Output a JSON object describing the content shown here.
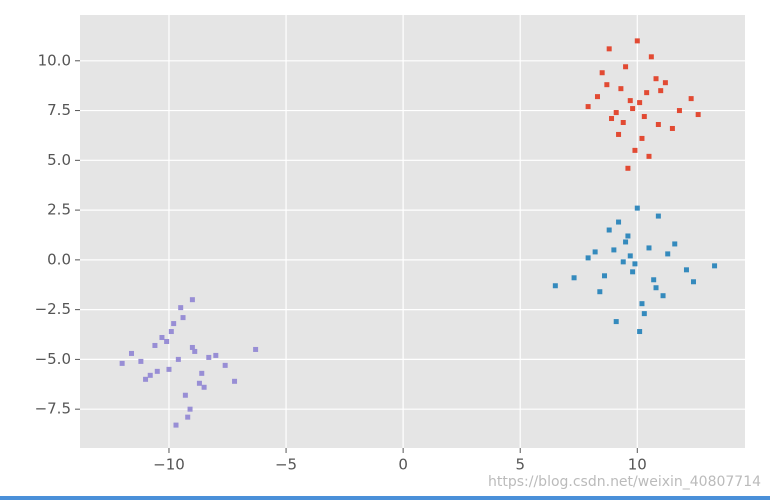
{
  "chart_data": {
    "type": "scatter",
    "xlim": [
      -13.8,
      14.6
    ],
    "ylim": [
      -9.45,
      12.3
    ],
    "xticks": [
      {
        "value": -10,
        "label": "−10"
      },
      {
        "value": -5,
        "label": "−5"
      },
      0,
      5,
      10
    ],
    "yticks": [
      {
        "value": -7.5,
        "label": "−7.5"
      },
      {
        "value": -5,
        "label": "−5.0"
      },
      {
        "value": -2.5,
        "label": "−2.5"
      },
      {
        "value": 0,
        "label": "0.0"
      },
      {
        "value": 2.5,
        "label": "2.5"
      },
      {
        "value": 5,
        "label": "5.0"
      },
      {
        "value": 7.5,
        "label": "7.5"
      },
      {
        "value": 10,
        "label": "10.0"
      }
    ],
    "grid": true,
    "series": [
      {
        "color": "#E24A33",
        "x": [
          9.8,
          10.4,
          8.9,
          11.2,
          9.5,
          10.9,
          8.3,
          10.1,
          9.2,
          11.8,
          10.6,
          9.9,
          8.7,
          10.3,
          12.3,
          9.4,
          10.8,
          7.9,
          9.6,
          11.0,
          10.2,
          8.5,
          9.1,
          11.5,
          10.0,
          9.7,
          8.8,
          10.5,
          12.6,
          9.3
        ],
        "y": [
          7.6,
          8.4,
          7.1,
          8.9,
          9.7,
          6.8,
          8.2,
          7.9,
          6.3,
          7.5,
          10.2,
          5.5,
          8.8,
          7.2,
          8.1,
          6.9,
          9.1,
          7.7,
          4.6,
          8.5,
          6.1,
          9.4,
          7.4,
          6.6,
          11.0,
          8.0,
          10.6,
          5.2,
          7.3,
          8.6
        ]
      },
      {
        "color": "#348ABD",
        "x": [
          9.9,
          10.5,
          8.6,
          11.3,
          9.2,
          10.8,
          7.9,
          10.2,
          9.5,
          12.1,
          10.0,
          9.1,
          8.2,
          10.7,
          13.3,
          9.6,
          11.1,
          6.5,
          9.8,
          11.6,
          10.3,
          8.8,
          9.4,
          12.4,
          10.1,
          9.7,
          8.4,
          10.9,
          7.3,
          9.0
        ],
        "y": [
          -0.2,
          0.6,
          -0.8,
          0.3,
          1.9,
          -1.4,
          0.1,
          -2.2,
          0.9,
          -0.5,
          2.6,
          -3.1,
          0.4,
          -1.0,
          -0.3,
          1.2,
          -1.8,
          -1.3,
          -0.6,
          0.8,
          -2.7,
          1.5,
          -0.1,
          -1.1,
          -3.6,
          0.2,
          -1.6,
          2.2,
          -0.9,
          0.5
        ]
      },
      {
        "color": "#988ED5",
        "x": [
          -9.6,
          -9.0,
          -10.5,
          -8.3,
          -9.9,
          -8.7,
          -11.2,
          -9.3,
          -10.1,
          -7.6,
          -9.5,
          -10.8,
          -8.9,
          -9.1,
          -6.3,
          -10.3,
          -8.5,
          -12.0,
          -9.7,
          -8.0,
          -9.4,
          -11.0,
          -10.0,
          -7.2,
          -9.8,
          -9.2,
          -10.6,
          -8.6,
          -11.6,
          -9.0
        ],
        "y": [
          -5.0,
          -4.4,
          -5.6,
          -4.9,
          -3.6,
          -6.2,
          -5.1,
          -6.8,
          -4.1,
          -5.3,
          -2.4,
          -5.8,
          -4.6,
          -7.5,
          -4.5,
          -3.9,
          -6.4,
          -5.2,
          -8.3,
          -4.8,
          -2.9,
          -6.0,
          -5.5,
          -6.1,
          -3.2,
          -7.9,
          -4.3,
          -5.7,
          -4.7,
          -2.0
        ]
      }
    ],
    "watermark": "https://blog.csdn.net/weixin_40807714"
  }
}
